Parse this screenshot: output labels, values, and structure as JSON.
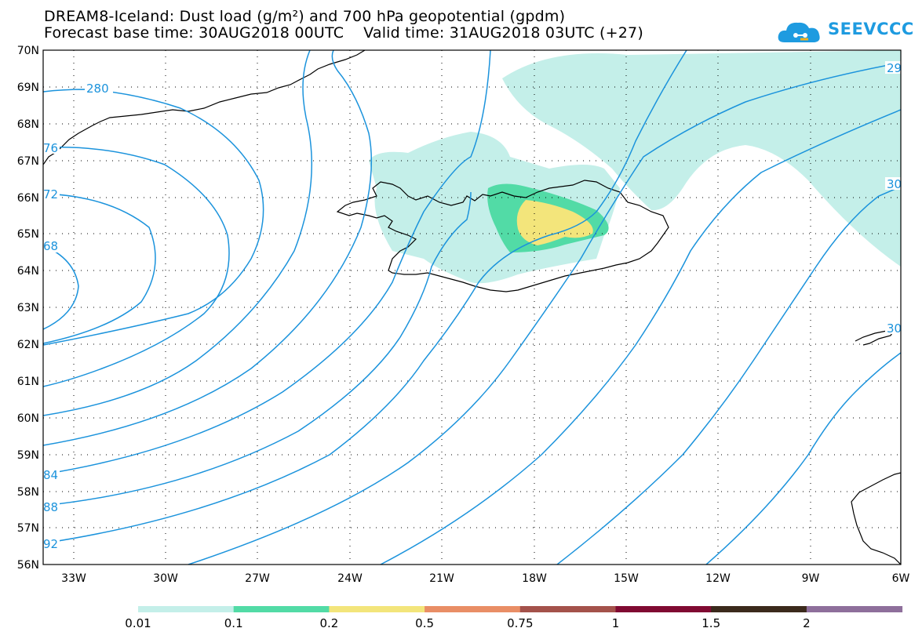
{
  "header": {
    "title_line1": "DREAM8-Iceland: Dust load (g/m²) and 700 hPa geopotential (gpdm)",
    "title_line2": "Forecast base time: 30AUG2018 00UTC    Valid time: 31AUG2018 03UTC (+27)",
    "logo_text": "SEEVCCC",
    "logo_icon": "cloud-logo-icon"
  },
  "map": {
    "lat_labels": [
      "70N",
      "69N",
      "68N",
      "67N",
      "66N",
      "65N",
      "64N",
      "63N",
      "62N",
      "61N",
      "60N",
      "59N",
      "58N",
      "57N",
      "56N"
    ],
    "lon_labels": [
      "33W",
      "30W",
      "27W",
      "24W",
      "21W",
      "18W",
      "15W",
      "12W",
      "9W",
      "6W"
    ],
    "contour_labels": [
      "280",
      "76",
      "72",
      "68",
      "84",
      "88",
      "92",
      "29",
      "30",
      "30"
    ],
    "contour_color": "#1b93dc",
    "coast_color": "#000000"
  },
  "colorbar": {
    "labels": [
      "0.01",
      "0.1",
      "0.2",
      "0.5",
      "0.75",
      "1",
      "1.5",
      "2"
    ],
    "colors": [
      "#c4efe9",
      "#52dba6",
      "#f3e57b",
      "#e98e66",
      "#a4524b",
      "#800a32",
      "#3b2a1c",
      "#8e6f9b"
    ]
  }
}
